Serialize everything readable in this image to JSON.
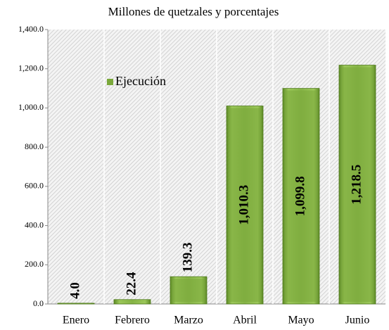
{
  "chart_data": {
    "type": "bar",
    "title": "Millones de quetzales y porcentajes",
    "categories": [
      "Enero",
      "Febrero",
      "Marzo",
      "Abril",
      "Mayo",
      "Junio"
    ],
    "series": [
      {
        "name": "Ejecución",
        "color": "#7aa83a",
        "values": [
          4.0,
          22.4,
          139.3,
          1010.3,
          1099.8,
          1218.5
        ],
        "value_labels": [
          "4.0",
          "22.4",
          "139.3",
          "1,010.3",
          "1,099.8",
          "1,218.5"
        ]
      }
    ],
    "ylim": [
      0,
      1400
    ],
    "yticks": [
      {
        "value": 0,
        "label": "0.0"
      },
      {
        "value": 200,
        "label": "200.0"
      },
      {
        "value": 400,
        "label": "400.0"
      },
      {
        "value": 600,
        "label": "600.0"
      },
      {
        "value": 800,
        "label": "800.0"
      },
      {
        "value": 1000,
        "label": "1,000.0"
      },
      {
        "value": 1200,
        "label": "1,200.0"
      },
      {
        "value": 1400,
        "label": "1,400.0"
      }
    ],
    "legend": "upper-left"
  }
}
